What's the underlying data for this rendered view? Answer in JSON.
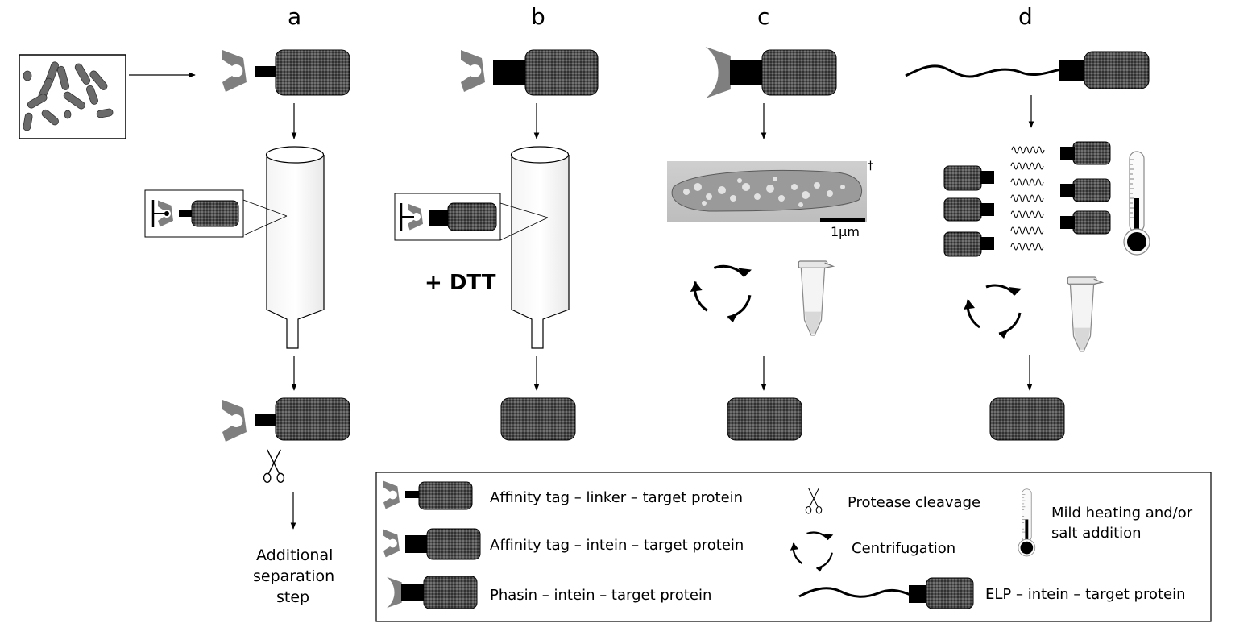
{
  "panels": {
    "a": "a",
    "b": "b",
    "c": "c",
    "d": "d"
  },
  "dtt": "+ DTT",
  "additional": [
    "Additional",
    "separation",
    "step"
  ],
  "micro": {
    "scale": "1µm",
    "dagger": "†"
  },
  "legend": {
    "affinity_linker": "Affinity tag – linker – target protein",
    "affinity_intein": "Affinity tag – intein – target protein",
    "phasin_intein": "Phasin – intein – target protein",
    "protease": "Protease cleavage",
    "centrifugation": "Centrifugation",
    "heating": [
      "Mild heating and/or",
      "salt addition"
    ],
    "elp_intein": "ELP – intein – target protein"
  },
  "colors": {
    "tag": "#7f7f7f",
    "intein": "#000000",
    "protein_fill": "#4a4a4a",
    "background": "#ffffff"
  }
}
